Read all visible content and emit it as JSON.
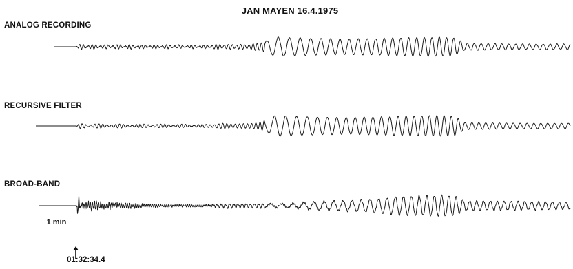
{
  "figure": {
    "title": "JAN MAYEN 16.4.1975",
    "traces": [
      {
        "label": "ANALOG RECORDING"
      },
      {
        "label": "RECURSIVE FILTER"
      },
      {
        "label": "BROAD-BAND"
      }
    ],
    "scale_bar": {
      "label": "1 min"
    },
    "onset_time": "01:32:34.4"
  }
}
